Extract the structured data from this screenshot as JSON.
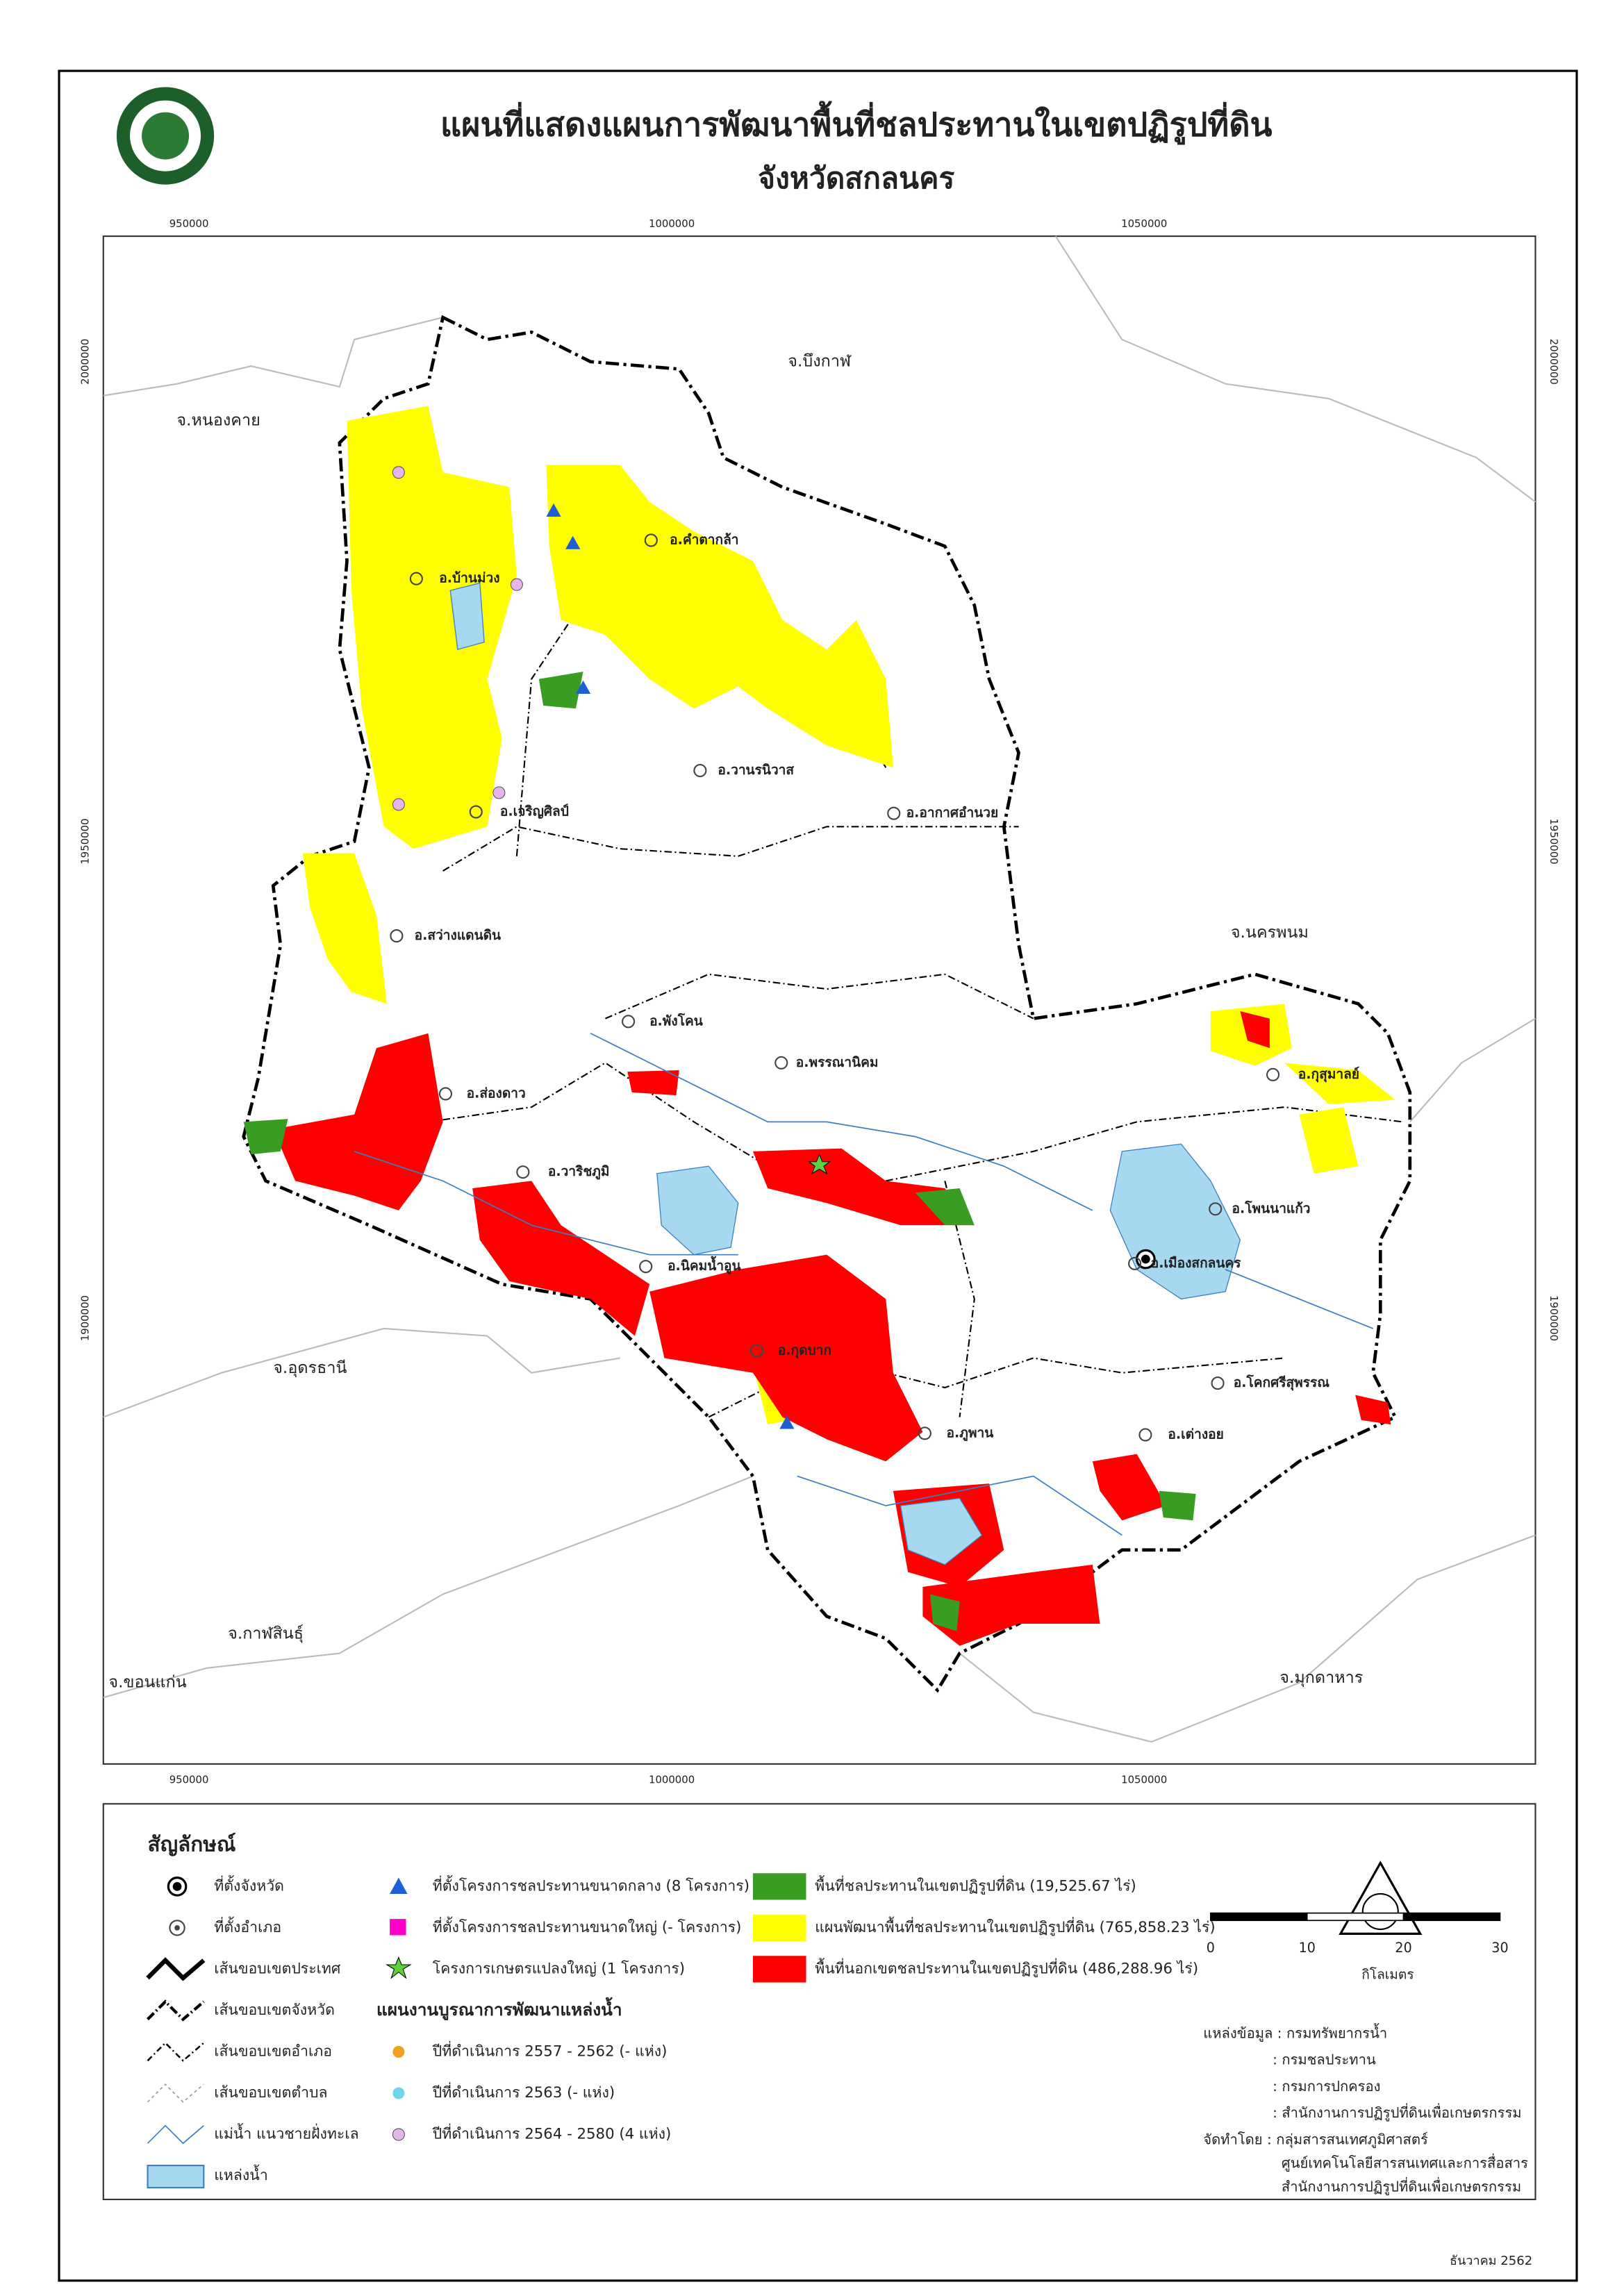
{
  "header": {
    "title": "แผนที่แสดงแผนการพัฒนาพื้นที่ชลประทานในเขตปฏิรูปที่ดิน",
    "subtitle": "จังหวัดสกลนคร"
  },
  "map": {
    "x_coordinates": [
      950000,
      1000000,
      1050000
    ],
    "y_coordinates": [
      2000000,
      1950000,
      1900000
    ],
    "provinces": [
      "จ.หนองคาย",
      "จ.บึงกาฬ",
      "จ.นครพนม",
      "จ.อุดรธานี",
      "จ.กาฬสินธุ์",
      "จ.ขอนแก่น",
      "จ.มุกดาหาร"
    ],
    "districts": [
      "อ.บ้านม่วง",
      "อ.คำตากล้า",
      "อ.วานรนิวาส",
      "อ.อากาศอำนวย",
      "อ.เจริญศิลป์",
      "อ.สว่างแดนดิน",
      "อ.พังโคน",
      "อ.พรรณานิคม",
      "อ.ส่องดาว",
      "อ.วาริชภูมิ",
      "อ.นิคมน้ำอูน",
      "อ.กุสุมาลย์",
      "อ.โพนนาแก้ว",
      "อ.เมืองสกลนคร",
      "อ.กุดบาก",
      "อ.ภูพาน",
      "อ.โคกศรีสุพรรณ",
      "อ.เต่างอย"
    ]
  },
  "legend": {
    "title": "สัญลักษณ์",
    "symbols": [
      "ที่ตั้งจังหวัด",
      "ที่ตั้งอำเภอ",
      "เส้นขอบเขตประเทศ",
      "เส้นขอบเขตจังหวัด",
      "เส้นขอบเขตอำเภอ",
      "เส้นขอบเขตตำบล",
      "แม่น้ำ แนวชายฝั่งทะเล",
      "แหล่งน้ำ"
    ],
    "projects": [
      "ที่ตั้งโครงการชลประทานขนาดกลาง (8 โครงการ)",
      "ที่ตั้งโครงการชลประทานขนาดใหญ่ (- โครงการ)",
      "โครงการเกษตรแปลงใหญ่ (1 โครงการ)"
    ],
    "integration": {
      "title": "แผนงานบูรณาการพัฒนาแหล่งน้ำ",
      "items": [
        "ปีที่ดำเนินการ 2557 - 2562 (- แห่ง)",
        "ปีที่ดำเนินการ 2563 (- แห่ง)",
        "ปีที่ดำเนินการ 2564 - 2580 (4 แห่ง)"
      ]
    },
    "areas": [
      "พื้นที่ชลประทานในเขตปฏิรูปที่ดิน (19,525.67 ไร่)",
      "แผนพัฒนาพื้นที่ชลประทานในเขตปฏิรูปที่ดิน (765,858.23 ไร่)",
      "พื้นที่นอกเขตชลประทานในเขตปฏิรูปที่ดิน (486,288.96 ไร่)"
    ]
  },
  "scale": {
    "ticks": [
      0,
      10,
      20,
      30
    ],
    "unit": "กิโลเมตร"
  },
  "credits": [
    "แหล่งข้อมูล : กรมทรัพยากรน้ำ",
    ": กรมชลประทาน",
    ": กรมการปกครอง",
    ": สำนักงานการปฏิรูปที่ดินเพื่อเกษตรกรรม",
    "จัดทำโดย : กลุ่มสารสนเทศภูมิศาสตร์",
    "ศูนย์เทคโนโลยีสารสนเทศและการสื่อสาร",
    "สำนักงานการปฏิรูปที่ดินเพื่อเกษตรกรรม"
  ],
  "date": "ธันวาคม 2562"
}
